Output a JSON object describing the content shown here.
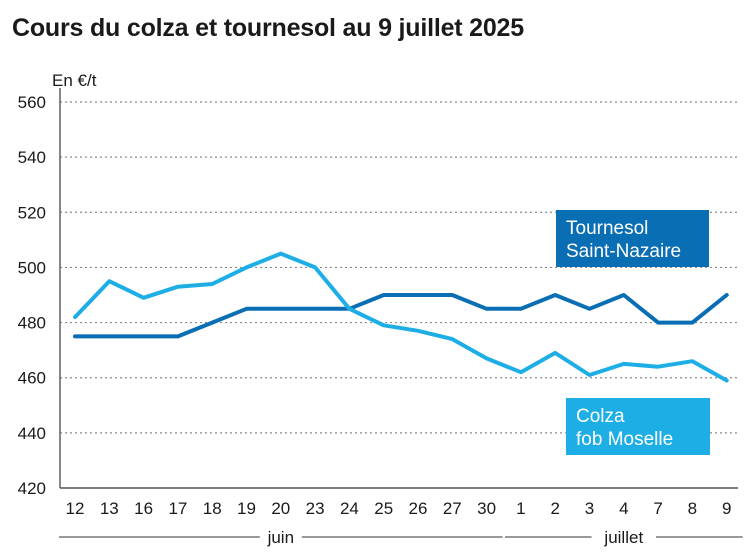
{
  "chart_data": {
    "type": "line",
    "title": "Cours du colza et tournesol au 9 juillet 2025",
    "ylabel": "En €/t",
    "ylim": [
      420,
      560
    ],
    "yticks": [
      420,
      440,
      460,
      480,
      500,
      520,
      540,
      560
    ],
    "grid": true,
    "categories": [
      "12",
      "13",
      "16",
      "17",
      "18",
      "19",
      "20",
      "23",
      "24",
      "25",
      "26",
      "27",
      "30",
      "1",
      "2",
      "3",
      "4",
      "7",
      "8",
      "9"
    ],
    "month_groups": [
      {
        "label": "juin",
        "start": 0,
        "end": 12
      },
      {
        "label": "juillet",
        "start": 13,
        "end": 19
      }
    ],
    "series": [
      {
        "name": "Tournesol Saint-Nazaire",
        "legend_lines": [
          "Tournesol",
          "Saint-Nazaire"
        ],
        "color": "#0a6eb4",
        "values": [
          475,
          475,
          475,
          475,
          480,
          485,
          485,
          485,
          485,
          490,
          490,
          490,
          485,
          485,
          490,
          485,
          490,
          480,
          480,
          490
        ]
      },
      {
        "name": "Colza fob Moselle",
        "legend_lines": [
          "Colza",
          "fob Moselle"
        ],
        "color": "#1eaee6",
        "values": [
          482,
          495,
          489,
          493,
          494,
          500,
          505,
          500,
          485,
          479,
          477,
          474,
          467,
          462,
          469,
          461,
          465,
          464,
          466,
          459
        ]
      }
    ]
  }
}
